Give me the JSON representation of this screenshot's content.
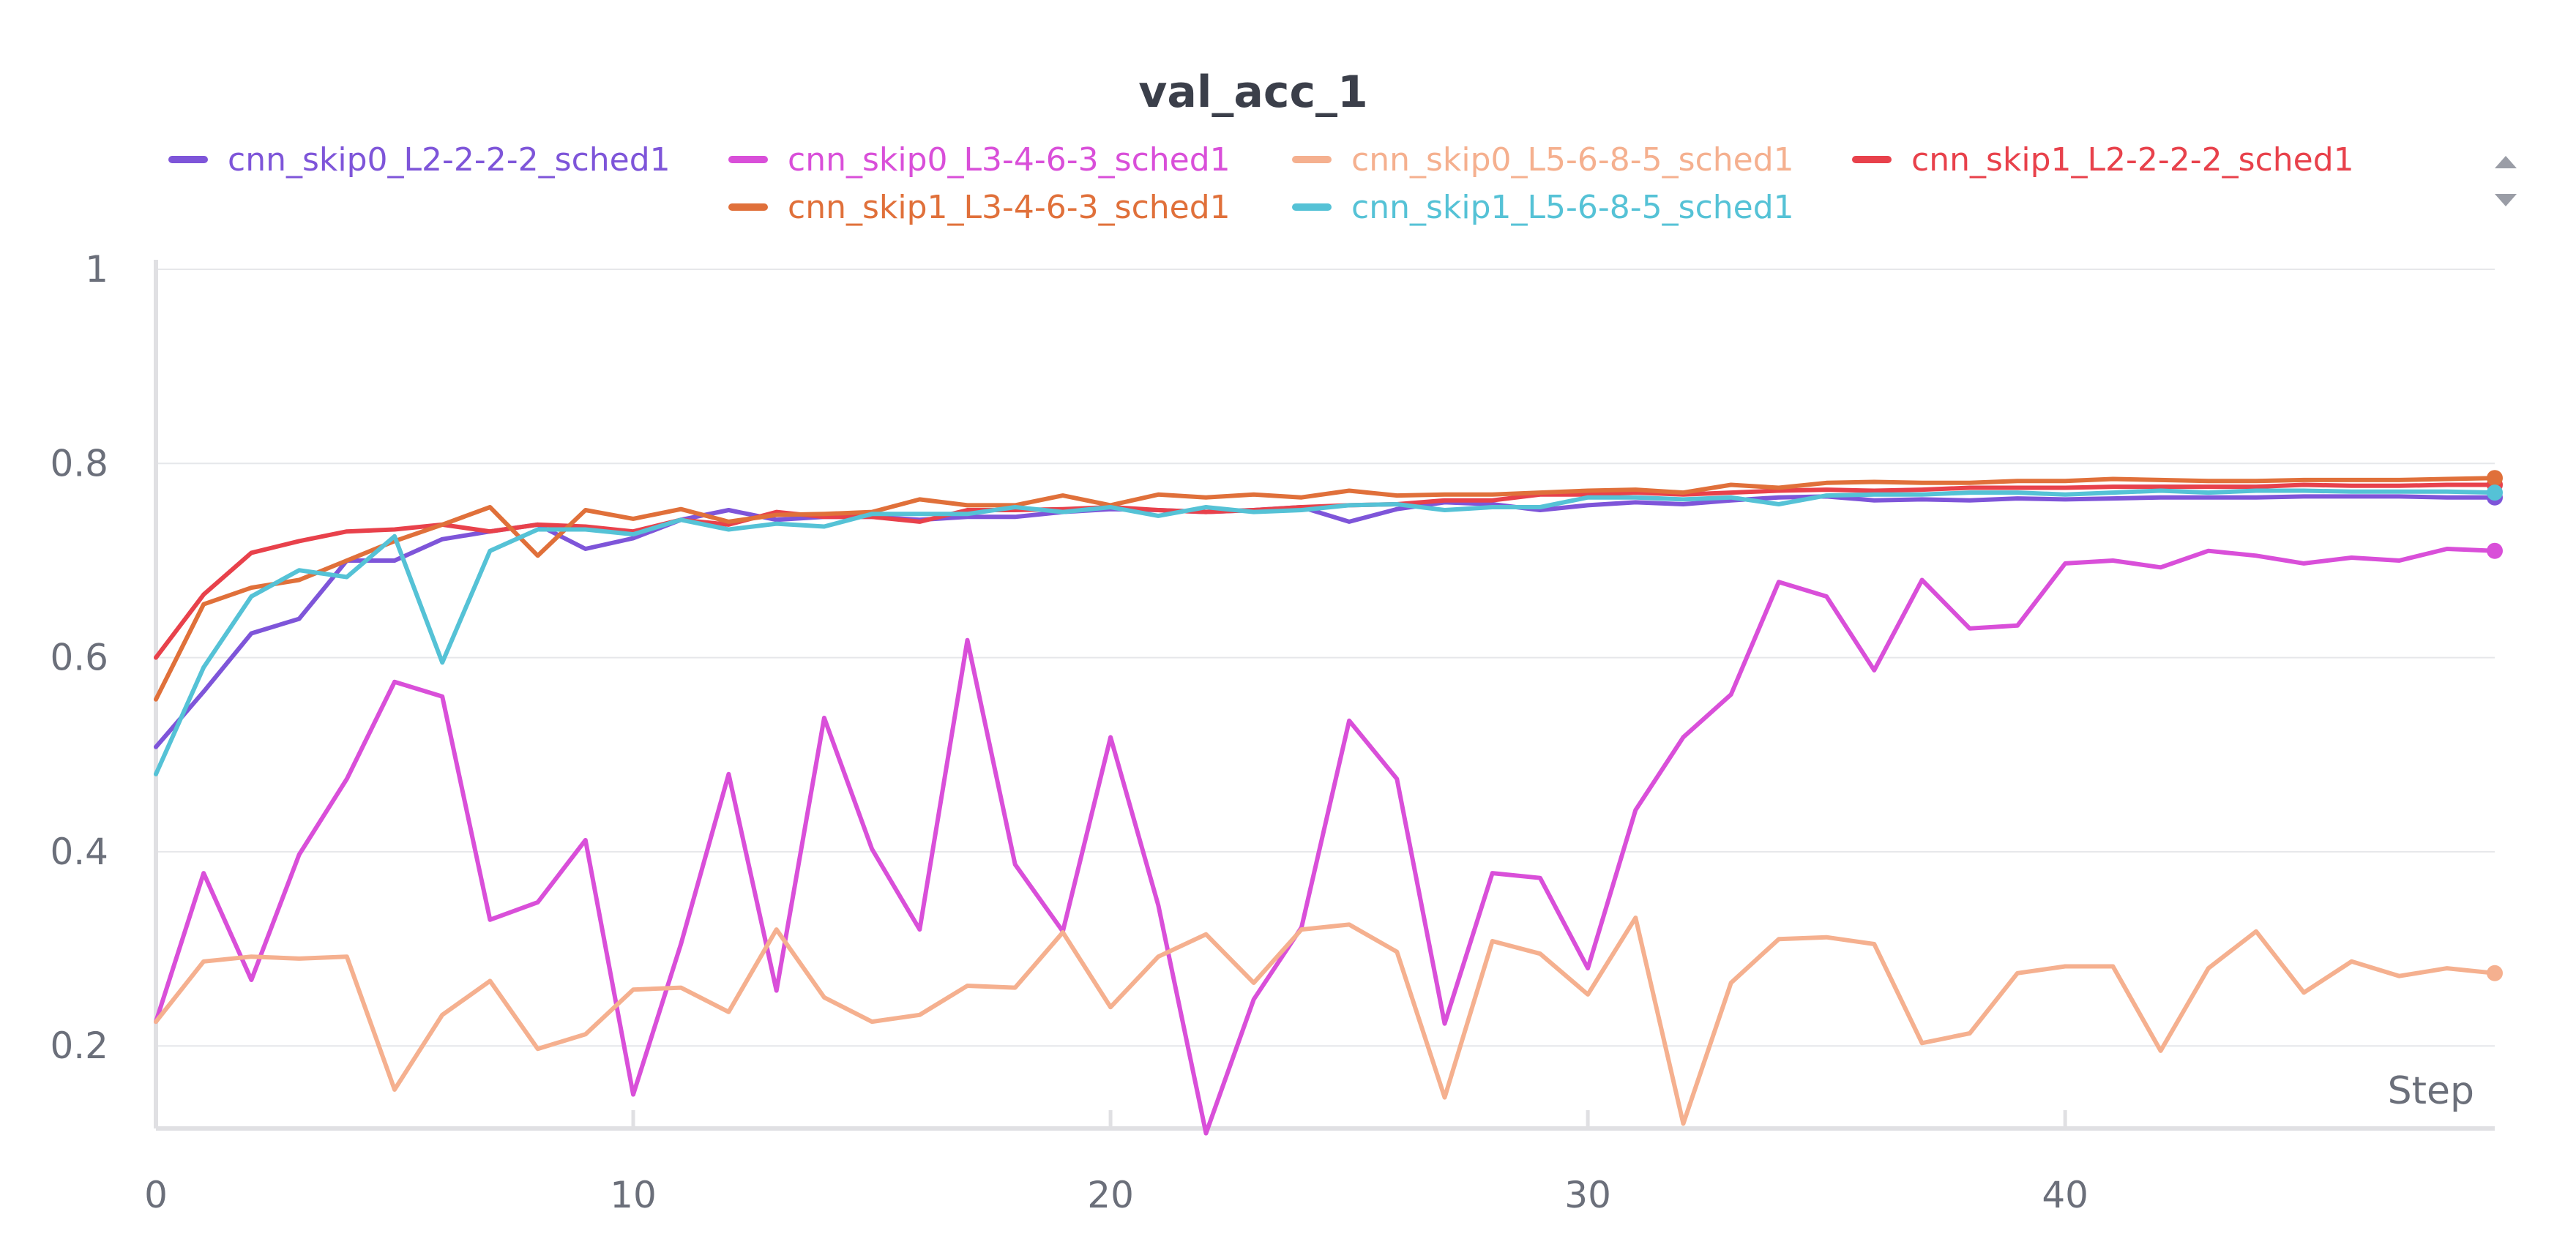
{
  "chart_data": {
    "type": "line",
    "title": "val_acc_1",
    "xlabel": "Step",
    "ylabel": "",
    "xlim": [
      0,
      49
    ],
    "ylim": [
      0.115,
      1.0
    ],
    "xticks": [
      0,
      10,
      20,
      30,
      40
    ],
    "yticks": [
      0.2,
      0.4,
      0.6,
      0.8,
      1
    ],
    "grid": true,
    "legend_position": "top",
    "series": [
      {
        "name": "cnn_skip0_L2-2-2-2_sched1",
        "color": "#7e55d9",
        "values": [
          0.508,
          0.565,
          0.625,
          0.64,
          0.7,
          0.7,
          0.722,
          0.73,
          0.737,
          0.712,
          0.723,
          0.742,
          0.752,
          0.742,
          0.745,
          0.745,
          0.742,
          0.745,
          0.745,
          0.75,
          0.753,
          0.752,
          0.75,
          0.752,
          0.755,
          0.74,
          0.753,
          0.76,
          0.758,
          0.752,
          0.757,
          0.76,
          0.758,
          0.762,
          0.765,
          0.766,
          0.762,
          0.763,
          0.762,
          0.764,
          0.763,
          0.764,
          0.765,
          0.765,
          0.765,
          0.766,
          0.766,
          0.766,
          0.765,
          0.765
        ]
      },
      {
        "name": "cnn_skip0_L3-4-6-3_sched1",
        "color": "#d94fd9",
        "values": [
          0.225,
          0.378,
          0.268,
          0.397,
          0.475,
          0.575,
          0.56,
          0.33,
          0.348,
          0.412,
          0.15,
          0.305,
          0.48,
          0.257,
          0.538,
          0.403,
          0.32,
          0.618,
          0.387,
          0.318,
          0.518,
          0.345,
          0.11,
          0.248,
          0.322,
          0.535,
          0.475,
          0.223,
          0.378,
          0.373,
          0.28,
          0.443,
          0.518,
          0.562,
          0.678,
          0.663,
          0.587,
          0.68,
          0.63,
          0.633,
          0.697,
          0.7,
          0.693,
          0.71,
          0.705,
          0.697,
          0.703,
          0.7,
          0.712,
          0.71
        ]
      },
      {
        "name": "cnn_skip0_L5-6-8-5_sched1",
        "color": "#f5b08f",
        "values": [
          0.225,
          0.287,
          0.292,
          0.29,
          0.292,
          0.155,
          0.232,
          0.267,
          0.197,
          0.212,
          0.258,
          0.26,
          0.235,
          0.32,
          0.25,
          0.225,
          0.232,
          0.262,
          0.26,
          0.317,
          0.24,
          0.292,
          0.315,
          0.265,
          0.32,
          0.325,
          0.297,
          0.147,
          0.308,
          0.295,
          0.253,
          0.332,
          0.12,
          0.265,
          0.31,
          0.312,
          0.305,
          0.203,
          0.213,
          0.275,
          0.282,
          0.282,
          0.195,
          0.28,
          0.318,
          0.255,
          0.287,
          0.272,
          0.28,
          0.275
        ]
      },
      {
        "name": "cnn_skip1_L2-2-2-2_sched1",
        "color": "#e8414b",
        "values": [
          0.6,
          0.665,
          0.708,
          0.72,
          0.73,
          0.732,
          0.737,
          0.73,
          0.737,
          0.735,
          0.73,
          0.742,
          0.737,
          0.75,
          0.745,
          0.745,
          0.74,
          0.752,
          0.752,
          0.753,
          0.755,
          0.752,
          0.75,
          0.752,
          0.755,
          0.757,
          0.758,
          0.762,
          0.762,
          0.768,
          0.768,
          0.77,
          0.768,
          0.77,
          0.772,
          0.773,
          0.772,
          0.773,
          0.775,
          0.775,
          0.775,
          0.776,
          0.776,
          0.776,
          0.776,
          0.778,
          0.777,
          0.777,
          0.778,
          0.778
        ]
      },
      {
        "name": "cnn_skip1_L3-4-6-3_sched1",
        "color": "#e0703a",
        "values": [
          0.557,
          0.655,
          0.672,
          0.68,
          0.7,
          0.72,
          0.737,
          0.755,
          0.705,
          0.752,
          0.743,
          0.753,
          0.74,
          0.747,
          0.748,
          0.75,
          0.763,
          0.757,
          0.757,
          0.767,
          0.757,
          0.768,
          0.765,
          0.768,
          0.765,
          0.772,
          0.767,
          0.768,
          0.768,
          0.77,
          0.772,
          0.773,
          0.77,
          0.778,
          0.775,
          0.78,
          0.781,
          0.78,
          0.78,
          0.782,
          0.782,
          0.784,
          0.783,
          0.782,
          0.782,
          0.783,
          0.783,
          0.783,
          0.784,
          0.785
        ]
      },
      {
        "name": "cnn_skip1_L5-6-8-5_sched1",
        "color": "#55c2d6",
        "values": [
          0.48,
          0.59,
          0.663,
          0.69,
          0.683,
          0.725,
          0.595,
          0.71,
          0.732,
          0.732,
          0.727,
          0.742,
          0.732,
          0.738,
          0.735,
          0.748,
          0.748,
          0.748,
          0.755,
          0.75,
          0.755,
          0.746,
          0.755,
          0.75,
          0.752,
          0.757,
          0.758,
          0.752,
          0.755,
          0.755,
          0.765,
          0.765,
          0.763,
          0.765,
          0.758,
          0.767,
          0.768,
          0.768,
          0.77,
          0.77,
          0.768,
          0.77,
          0.772,
          0.77,
          0.772,
          0.772,
          0.771,
          0.771,
          0.771,
          0.77
        ]
      }
    ]
  }
}
